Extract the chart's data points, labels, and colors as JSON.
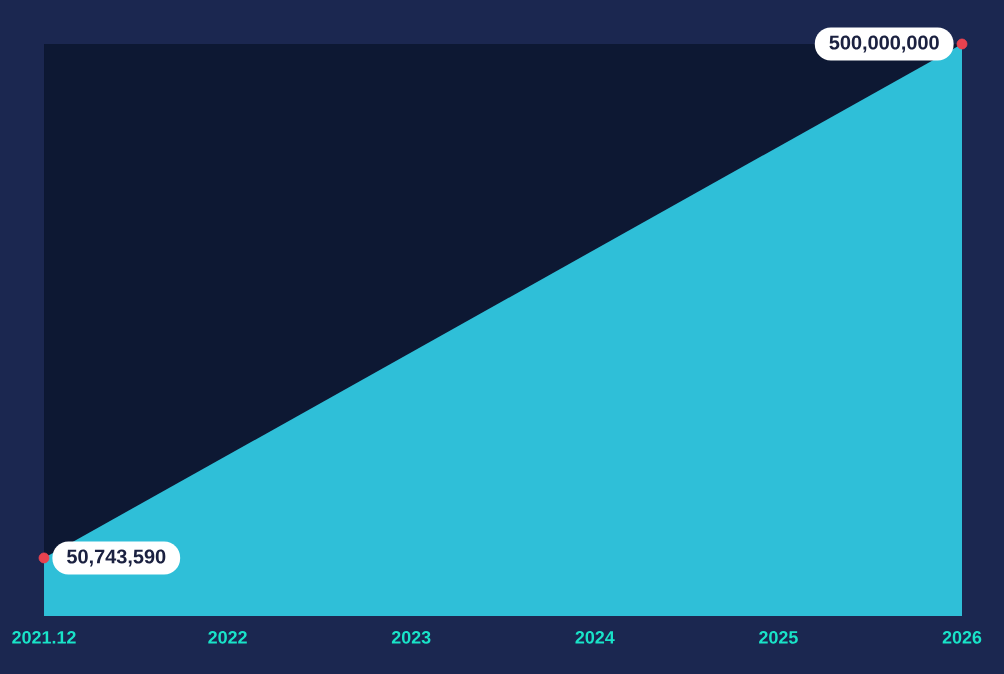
{
  "chart_data": {
    "type": "area",
    "categories": [
      "2021.12",
      "2022",
      "2023",
      "2024",
      "2025",
      "2026"
    ],
    "ylim": [
      0,
      500000000
    ],
    "tick_labels": "x",
    "color": "#2fbfd8",
    "values": [
      50743590,
      null,
      null,
      null,
      null,
      500000000
    ],
    "value_labels": [
      "50,743,590",
      null,
      null,
      null,
      null,
      "500,000,000"
    ],
    "marker": "circle"
  }
}
